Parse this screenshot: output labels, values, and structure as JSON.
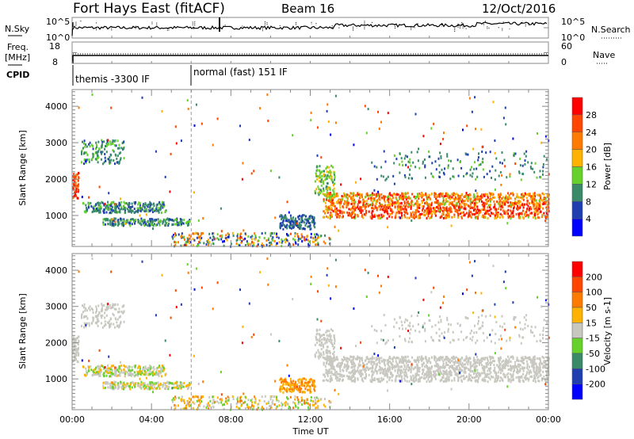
{
  "header": {
    "station": "Fort Hays East (fitACF)",
    "beam": "Beam 16",
    "date": "12/Oct/2016"
  },
  "top_panels": {
    "nsky_label": "N.Sky",
    "nsky_hi": "10^5",
    "nsky_lo": "10^0",
    "nsearch_label": "N.Search",
    "nsearch_hi": "10^5",
    "nsearch_lo": "10^0",
    "freq_label": "Freq.",
    "freq_unit": "[MHz]",
    "freq_hi": "18",
    "freq_lo": "8",
    "nave_label": "Nave",
    "nave_hi": "60",
    "nave_lo": "0",
    "cpid_label": "CPID",
    "cpid": [
      {
        "name": "themis -3300 IF",
        "start_h": 0
      },
      {
        "name": "normal (fast) 151 IF",
        "start_h": 6
      }
    ]
  },
  "chart_data": [
    {
      "type": "heatmap",
      "name": "power",
      "ylabel": "Slant Range [km]",
      "yticks": [
        "1000",
        "2000",
        "3000",
        "4000"
      ],
      "ylim": [
        150,
        4460
      ],
      "xlabel": "Time UT",
      "xlim": [
        0,
        24
      ],
      "xticks": [
        "00:00",
        "04:00",
        "08:00",
        "12:00",
        "16:00",
        "20:00",
        "00:00"
      ],
      "colorbar": {
        "label": "Power [dB]",
        "ticks": [
          "4",
          "8",
          "12",
          "16",
          "20",
          "24",
          "28"
        ],
        "colors": [
          "#0000ff",
          "#1f3fb0",
          "#3a8a6a",
          "#66d12a",
          "#ffb300",
          "#ff7a00",
          "#ff4500",
          "#ff0000"
        ]
      }
    },
    {
      "type": "heatmap",
      "name": "velocity",
      "ylabel": "Slant Range [km]",
      "yticks": [
        "1000",
        "2000",
        "3000",
        "4000"
      ],
      "ylim": [
        150,
        4460
      ],
      "xlabel": "Time UT",
      "xlim": [
        0,
        24
      ],
      "xticks": [
        "00:00",
        "04:00",
        "08:00",
        "12:00",
        "16:00",
        "20:00",
        "00:00"
      ],
      "colorbar": {
        "label": "Velocity [m s-1]",
        "ticks": [
          "200",
          "100",
          "50",
          "15",
          "-15",
          "-50",
          "-100",
          "-200"
        ],
        "colors": [
          "#0000ff",
          "#1f3fb0",
          "#3a8a6a",
          "#66d12a",
          "#c8c8c0",
          "#ffb300",
          "#ff7a00",
          "#ff4500",
          "#ff0000"
        ]
      }
    }
  ],
  "echo_regions": [
    {
      "t": [
        0,
        0.3
      ],
      "r": [
        1500,
        2200
      ],
      "p": [
        5,
        7
      ],
      "v": [
        4,
        4
      ],
      "n": 60
    },
    {
      "t": [
        0.4,
        2.6
      ],
      "r": [
        2450,
        3100
      ],
      "p": [
        1,
        3
      ],
      "v": [
        4,
        4
      ],
      "n": 140
    },
    {
      "t": [
        0.5,
        4.7
      ],
      "r": [
        1100,
        1400
      ],
      "p": [
        1,
        3
      ],
      "v": [
        3,
        5
      ],
      "n": 260
    },
    {
      "t": [
        1.5,
        5.9
      ],
      "r": [
        750,
        950
      ],
      "p": [
        1,
        3
      ],
      "v": [
        3,
        5
      ],
      "n": 200
    },
    {
      "t": [
        10.4,
        12.2
      ],
      "r": [
        650,
        1050
      ],
      "p": [
        1,
        2
      ],
      "v": [
        5,
        6
      ],
      "n": 150
    },
    {
      "t": [
        12.6,
        24
      ],
      "r": [
        950,
        1650
      ],
      "p": [
        3,
        7
      ],
      "v": [
        4,
        4
      ],
      "n": 1400
    },
    {
      "t": [
        12.2,
        13.2
      ],
      "r": [
        1500,
        2400
      ],
      "p": [
        2,
        4
      ],
      "v": [
        4,
        4
      ],
      "n": 120
    },
    {
      "t": [
        15,
        24
      ],
      "r": [
        2000,
        2800
      ],
      "p": [
        1,
        3
      ],
      "v": [
        4,
        4
      ],
      "n": 160
    },
    {
      "t": [
        5,
        13
      ],
      "r": [
        180,
        550
      ],
      "p": [
        0,
        6
      ],
      "v": [
        3,
        6
      ],
      "n": 260
    },
    {
      "t": [
        0,
        24
      ],
      "r": [
        600,
        4400
      ],
      "p": [
        0,
        7
      ],
      "v": [
        0,
        8
      ],
      "n": 140
    }
  ]
}
